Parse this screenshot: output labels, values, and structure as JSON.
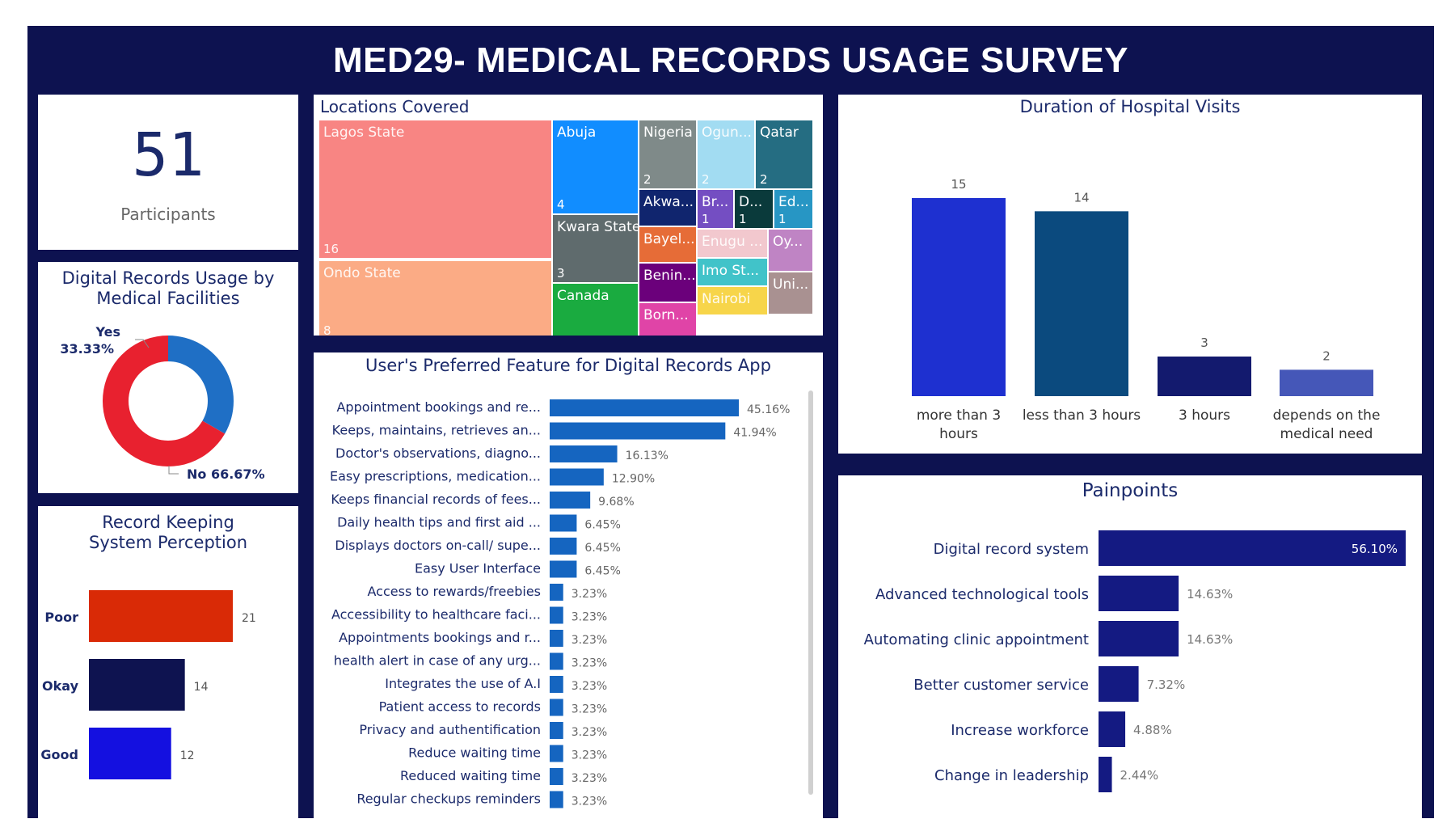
{
  "header": {
    "title": "MED29- MEDICAL RECORDS USAGE SURVEY"
  },
  "kpi": {
    "value": "51",
    "label": "Participants"
  },
  "colors": {
    "frame": "#0d1250",
    "panel": "#ffffff",
    "title_text": "#1b2a6b"
  },
  "chart_data": [
    {
      "id": "digital_records_usage",
      "type": "pie",
      "title": "Digital Records Usage by Medical Facilities",
      "labels": [
        "Yes",
        "No"
      ],
      "values": [
        33.33,
        66.67
      ],
      "value_labels": [
        "33.33%",
        "66.67%"
      ],
      "colors": [
        "#1f6fc5",
        "#e8212f"
      ]
    },
    {
      "id": "record_keeping",
      "type": "bar",
      "orientation": "horizontal",
      "title": "Record Keeping System Perception",
      "categories": [
        "Poor",
        "Okay",
        "Good"
      ],
      "values": [
        21,
        14,
        12
      ],
      "value_labels": [
        "21",
        "14",
        "12"
      ],
      "colors": [
        "#d92a06",
        "#0e1350",
        "#1410e0"
      ]
    },
    {
      "id": "locations",
      "type": "treemap",
      "title": "Locations Covered",
      "items": [
        {
          "label": "Lagos State",
          "value": 16,
          "value_label": "16",
          "color": "#f88583"
        },
        {
          "label": "Ondo State",
          "value": 8,
          "value_label": "8",
          "color": "#fbab85"
        },
        {
          "label": "Abuja",
          "value": 4,
          "value_label": "4",
          "color": "#118dff"
        },
        {
          "label": "Kwara State",
          "value": 3,
          "value_label": "3",
          "color": "#5f6b6d"
        },
        {
          "label": "Canada",
          "value": 2,
          "value_label": "",
          "color": "#1aab40"
        },
        {
          "label": "Nigeria",
          "value": 2,
          "value_label": "2",
          "color": "#7f8a89"
        },
        {
          "label": "Ogun...",
          "value": 2,
          "value_label": "2",
          "color": "#a2dcf2"
        },
        {
          "label": "Qatar",
          "value": 2,
          "value_label": "2",
          "color": "#256d82"
        },
        {
          "label": "Akwa...",
          "value": 1,
          "value_label": "",
          "color": "#10256e"
        },
        {
          "label": "Bayel...",
          "value": 1,
          "value_label": "",
          "color": "#e66c37"
        },
        {
          "label": "Benin...",
          "value": 1,
          "value_label": "",
          "color": "#6b007b"
        },
        {
          "label": "Born...",
          "value": 1,
          "value_label": "",
          "color": "#e044a7"
        },
        {
          "label": "Br...",
          "value": 1,
          "value_label": "1",
          "color": "#744ec2"
        },
        {
          "label": "D...",
          "value": 1,
          "value_label": "1",
          "color": "#0a3a3b"
        },
        {
          "label": "Ed...",
          "value": 1,
          "value_label": "1",
          "color": "#2796c4"
        },
        {
          "label": "Enugu ...",
          "value": 1,
          "value_label": "",
          "color": "#f2c8ce"
        },
        {
          "label": "Oy...",
          "value": 1,
          "value_label": "",
          "color": "#bf84c4"
        },
        {
          "label": "Imo St...",
          "value": 1,
          "value_label": "",
          "color": "#41c3c9"
        },
        {
          "label": "Uni...",
          "value": 1,
          "value_label": "",
          "color": "#a99191"
        },
        {
          "label": "Nairobi",
          "value": 1,
          "value_label": "",
          "color": "#f7d54a"
        }
      ]
    },
    {
      "id": "preferred_feature",
      "type": "bar",
      "orientation": "horizontal",
      "title": "User's Preferred Feature for Digital Records App",
      "categories": [
        "Appointment bookings and re...",
        "Keeps, maintains, retrieves an...",
        "Doctor's observations, diagno...",
        "Easy prescriptions, medication...",
        "Keeps financial records of fees...",
        "Daily health tips and first aid ...",
        "Displays doctors on-call/ supe...",
        "Easy User Interface",
        "Access to rewards/freebies",
        "Accessibility to healthcare faci...",
        "Appointments bookings and r...",
        "health alert in case of any urg...",
        "Integrates the use of A.I",
        "Patient access to records",
        "Privacy and authentification",
        "Reduce waiting time",
        "Reduced waiting time",
        "Regular checkups reminders"
      ],
      "values": [
        45.16,
        41.94,
        16.13,
        12.9,
        9.68,
        6.45,
        6.45,
        6.45,
        3.23,
        3.23,
        3.23,
        3.23,
        3.23,
        3.23,
        3.23,
        3.23,
        3.23,
        3.23
      ],
      "value_labels": [
        "45.16%",
        "41.94%",
        "16.13%",
        "12.90%",
        "9.68%",
        "6.45%",
        "6.45%",
        "6.45%",
        "3.23%",
        "3.23%",
        "3.23%",
        "3.23%",
        "3.23%",
        "3.23%",
        "3.23%",
        "3.23%",
        "3.23%",
        "3.23%"
      ],
      "color": "#1565c0"
    },
    {
      "id": "duration",
      "type": "bar",
      "orientation": "vertical",
      "title": "Duration of Hospital Visits",
      "categories": [
        "more than 3 hours",
        "less than 3 hours",
        "3 hours",
        "depends on the medical need"
      ],
      "values": [
        15,
        14,
        3,
        2
      ],
      "value_labels": [
        "15",
        "14",
        "3",
        "2"
      ],
      "colors": [
        "#1e30d0",
        "#0b4a7e",
        "#131a6e",
        "#4557b8"
      ]
    },
    {
      "id": "painpoints",
      "type": "bar",
      "orientation": "horizontal",
      "title": "Painpoints",
      "categories": [
        "Digital record system",
        "Advanced technological tools",
        "Automating clinic appointment",
        "Better customer service",
        "Increase workforce",
        "Change in leadership"
      ],
      "values": [
        56.1,
        14.63,
        14.63,
        7.32,
        4.88,
        2.44
      ],
      "value_labels": [
        "56.10%",
        "14.63%",
        "14.63%",
        "7.32%",
        "4.88%",
        "2.44%"
      ],
      "color": "#141a82"
    }
  ]
}
